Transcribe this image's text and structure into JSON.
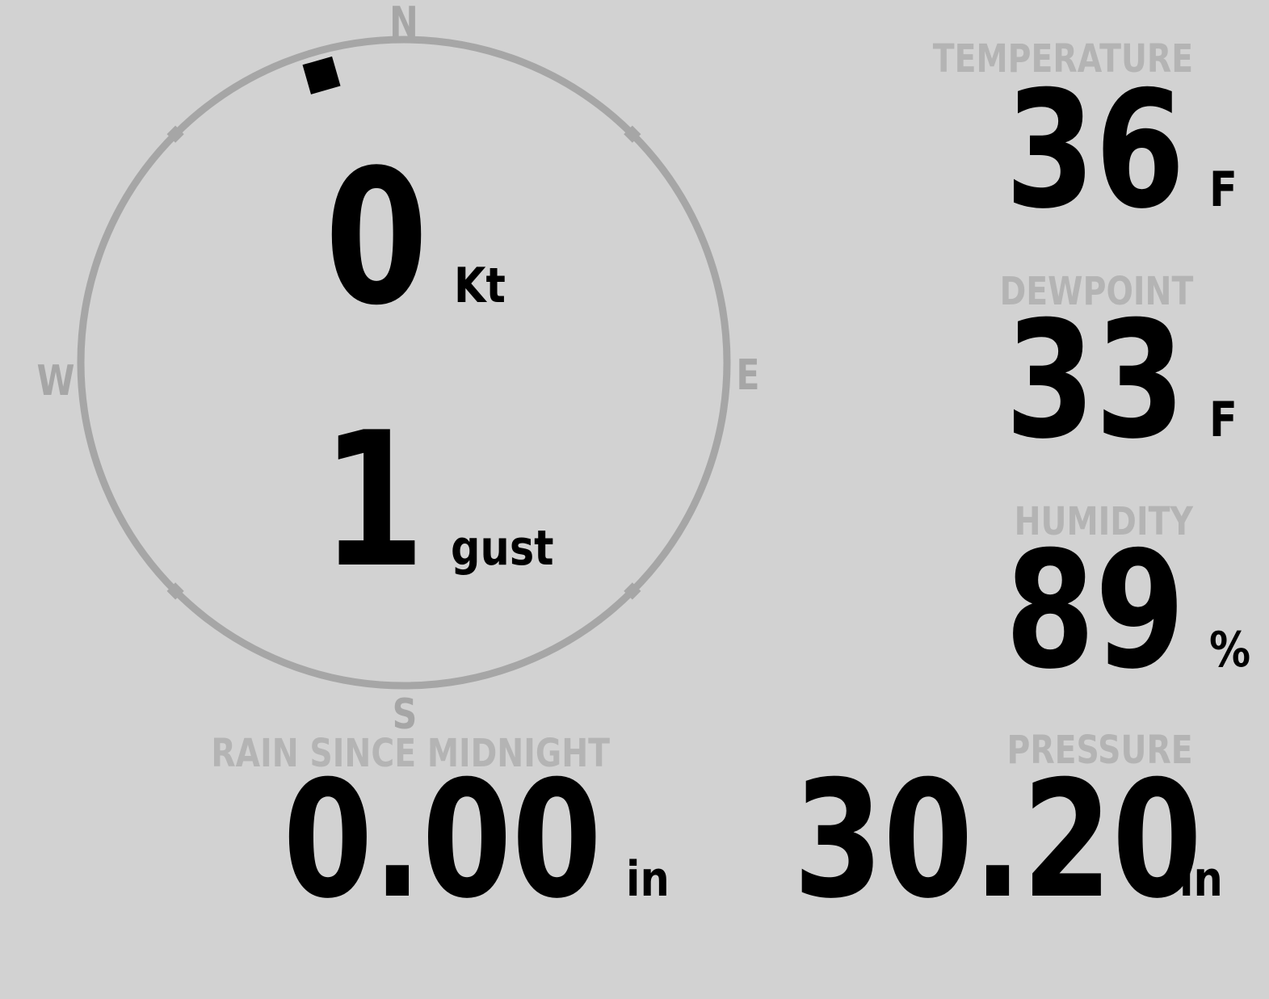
{
  "colors": {
    "background": "#d2d2d2",
    "label": "#b4b4b4",
    "compass": "#a6a6a6",
    "value": "#000000"
  },
  "compass": {
    "cardinals": {
      "north": "N",
      "east": "E",
      "south": "S",
      "west": "W"
    },
    "wind_direction_deg": 344,
    "speed": {
      "value": "0",
      "unit": "Kt"
    },
    "gust": {
      "value": "1",
      "unit": "gust"
    }
  },
  "metrics": {
    "temperature": {
      "label": "TEMPERATURE",
      "value": "36",
      "unit": "F"
    },
    "dewpoint": {
      "label": "DEWPOINT",
      "value": "33",
      "unit": "F"
    },
    "humidity": {
      "label": "HUMIDITY",
      "value": "89",
      "unit": "%"
    },
    "rain": {
      "label": "RAIN SINCE MIDNIGHT",
      "value": "0.00",
      "unit": "in"
    },
    "pressure": {
      "label": "PRESSURE",
      "value": "30.20",
      "unit": "in"
    }
  }
}
